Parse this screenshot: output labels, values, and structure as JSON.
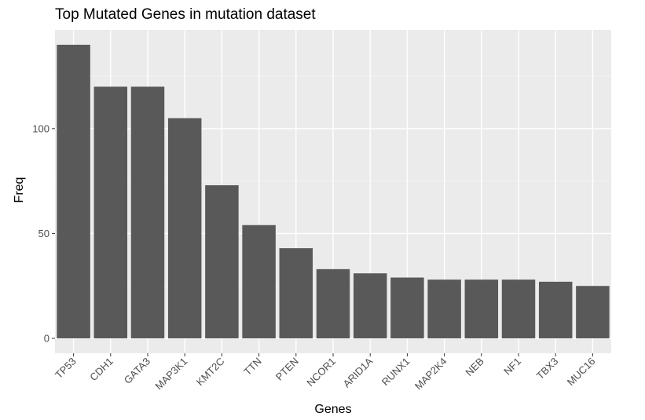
{
  "chart_data": {
    "type": "bar",
    "title": "Top Mutated Genes in mutation dataset",
    "xlabel": "Genes",
    "ylabel": "Freq",
    "categories": [
      "TP53",
      "CDH1",
      "GATA3",
      "MAP3K1",
      "KMT2C",
      "TTN",
      "PTEN",
      "NCOR1",
      "ARID1A",
      "RUNX1",
      "MAP2K4",
      "NEB",
      "NF1",
      "TBX3",
      "MUC16"
    ],
    "values": [
      140,
      120,
      120,
      105,
      73,
      54,
      43,
      33,
      31,
      29,
      28,
      28,
      28,
      27,
      25
    ],
    "yticks": [
      0,
      50,
      100
    ],
    "ylim": [
      0,
      146
    ],
    "grid": true,
    "colors": {
      "bar": "#595959",
      "panel": "#ebebeb",
      "grid_major": "#ffffff",
      "grid_minor": "#f5f5f5",
      "tick": "#333333"
    }
  }
}
